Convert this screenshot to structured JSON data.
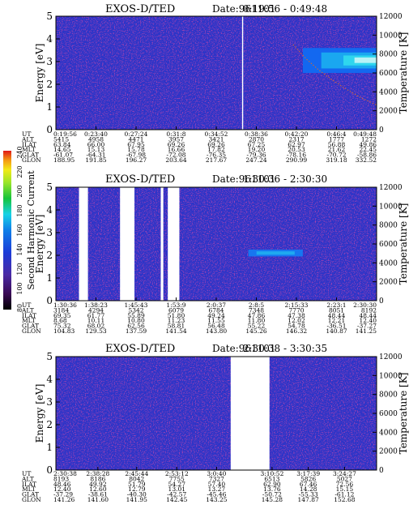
{
  "colorbar": {
    "label": "Second Harmonic Current",
    "ticks": [
      "80",
      "100",
      "120",
      "140",
      "160",
      "180",
      "200",
      "220",
      "240"
    ]
  },
  "chart_data": [
    {
      "type": "heatmap",
      "title": "EXOS-D/TED",
      "date": "Date:961101",
      "time_range": "0:19:56 - 0:49:48",
      "ylabel": "Energy [eV]",
      "y2label": "Temperature [K]",
      "ylim": [
        0,
        5
      ],
      "y2lim": [
        0,
        12000
      ],
      "yticks": [
        "0",
        "1",
        "2",
        "3",
        "4",
        "5"
      ],
      "y2ticks": [
        "0",
        "2000",
        "4000",
        "6000",
        "8000",
        "10000",
        "12000"
      ],
      "ephemeris": [
        {
          "name": "UT",
          "values": [
            "0:19:56",
            "0:23:40",
            "0:27:24",
            "0:31:8",
            "0:34:52",
            "0:38:36",
            "0:42:20",
            "0:46:4",
            "0:49:48"
          ]
        },
        {
          "name": "ALT",
          "values": [
            "5415",
            "4958",
            "4471",
            "3957",
            "3421",
            "2870",
            "2317",
            "1777",
            "1272"
          ]
        },
        {
          "name": "ILAT",
          "values": [
            "63.84",
            "66.00",
            "67.95",
            "69.26",
            "69.26",
            "67.25",
            "62.97",
            "56.88",
            "49.86"
          ]
        },
        {
          "name": "MLT",
          "values": [
            "14.65",
            "15.13",
            "15.78",
            "16.66",
            "17.82",
            "19.20",
            "20.53",
            "21.62",
            "22.45"
          ]
        },
        {
          "name": "GLAT",
          "values": [
            "-61.07",
            "-64.31",
            "-67.98",
            "-72.08",
            "-76.35",
            "-79.36",
            "-78.16",
            "-70.72",
            "-58.86"
          ]
        },
        {
          "name": "GLON",
          "values": [
            "188.95",
            "191.85",
            "196.27",
            "203.64",
            "217.67",
            "247.24",
            "290.99",
            "319.18",
            "332.52"
          ]
        }
      ],
      "gaps_fraction": [
        [
          0.5805,
          0.584
        ]
      ],
      "hot_region": {
        "x_from": 0.77,
        "x_to": 1.0,
        "e_from": 2.5,
        "e_to": 3.6
      },
      "temperature_trace": [
        [
          0.74,
          9000
        ],
        [
          0.78,
          7500
        ],
        [
          0.82,
          6300
        ],
        [
          0.86,
          5300
        ],
        [
          0.9,
          4400
        ],
        [
          0.95,
          3400
        ],
        [
          1.0,
          2600
        ]
      ]
    },
    {
      "type": "heatmap",
      "title": "EXOS-D/TED",
      "date": "Date:961101",
      "time_range": "1:30:36 - 2:30:30",
      "ylabel": "Energy [eV]",
      "y2label": "Temperature [K]",
      "ylim": [
        0,
        5
      ],
      "y2lim": [
        0,
        12000
      ],
      "yticks": [
        "0",
        "1",
        "2",
        "3",
        "4",
        "5"
      ],
      "y2ticks": [
        "0",
        "2000",
        "4000",
        "6000",
        "8000",
        "10000",
        "12000"
      ],
      "ephemeris": [
        {
          "name": "UT",
          "values": [
            "1:30:36",
            "1:38:23",
            "1:45:43",
            "1:53:9",
            "2:0:37",
            "2:8:5",
            "2:15:33",
            "2:23:1",
            "2:30:30"
          ]
        },
        {
          "name": "ALT",
          "values": [
            "3184",
            "4294",
            "5342",
            "6079",
            "6784",
            "7348",
            "7770",
            "8051",
            "8192"
          ]
        },
        {
          "name": "ILAT",
          "values": [
            "69.35",
            "61.77",
            "55.89",
            "51.80",
            "49.24",
            "47.86",
            "47.38",
            "48.44",
            "48.44"
          ]
        },
        {
          "name": "MLT",
          "values": [
            "8.68",
            "10.11",
            "10.80",
            "11.23",
            "11.55",
            "11.80",
            "12.02",
            "12.21",
            "12.40"
          ]
        },
        {
          "name": "GLAT",
          "values": [
            "75.32",
            "68.02",
            "62.56",
            "58.81",
            "56.48",
            "55.22",
            "54.78",
            "-36.51",
            "-37.27"
          ]
        },
        {
          "name": "GLON",
          "values": [
            "104.83",
            "129.53",
            "137.59",
            "141.54",
            "143.80",
            "145.26",
            "146.32",
            "140.87",
            "141.25"
          ]
        }
      ],
      "gaps_fraction": [
        [
          0.072,
          0.1
        ],
        [
          0.2,
          0.245
        ],
        [
          0.349,
          0.385
        ],
        [
          0.327,
          0.335
        ]
      ],
      "hot_region": {
        "x_from": 0.6,
        "x_to": 0.77,
        "e_from": 1.95,
        "e_to": 2.25
      },
      "temperature_trace": []
    },
    {
      "type": "heatmap",
      "title": "EXOS-D/TED",
      "date": "Date:961101",
      "time_range": "2:30:38 - 3:30:35",
      "ylabel": "Energy [eV]",
      "y2label": "Temperature [K]",
      "ylim": [
        0,
        5
      ],
      "y2lim": [
        0,
        12000
      ],
      "yticks": [
        "0",
        "1",
        "2",
        "3",
        "4",
        "5"
      ],
      "y2ticks": [
        "0",
        "2000",
        "4000",
        "6000",
        "8000",
        "10000",
        "12000"
      ],
      "ephemeris": [
        {
          "name": "UT",
          "values": [
            "2:30:38",
            "2:38:28",
            "2:45:44",
            "2:53:12",
            "3:0:40",
            "3:10:52",
            "3:17:39",
            "3:24:27"
          ]
        },
        {
          "name": "ALT",
          "values": [
            "8193",
            "8186",
            "8042",
            "7755",
            "7327",
            "6513",
            "5826",
            "5027"
          ]
        },
        {
          "name": "ILAT",
          "values": [
            "48.46",
            "49.92",
            "51.79",
            "54.27",
            "57.40",
            "62.90",
            "67.46",
            "72.56"
          ]
        },
        {
          "name": "MLT",
          "values": [
            "12.40",
            "12.60",
            "12.79",
            "13.01",
            "13.27",
            "13.76",
            "14.28",
            "15.15"
          ]
        },
        {
          "name": "GLAT",
          "values": [
            "-37.29",
            "-38.61",
            "-40.30",
            "-42.57",
            "-45.46",
            "-50.72",
            "-55.33",
            "-61.12"
          ]
        },
        {
          "name": "GLON",
          "values": [
            "141.26",
            "141.60",
            "141.95",
            "142.45",
            "143.25",
            "145.28",
            "147.87",
            "152.68"
          ]
        }
      ],
      "ut_positions": [
        0.0,
        0.131,
        0.252,
        0.377,
        0.501,
        0.674,
        0.787,
        0.9
      ],
      "gaps_fraction": [
        [
          0.545,
          0.666
        ]
      ],
      "hot_region": null,
      "temperature_trace": []
    }
  ]
}
